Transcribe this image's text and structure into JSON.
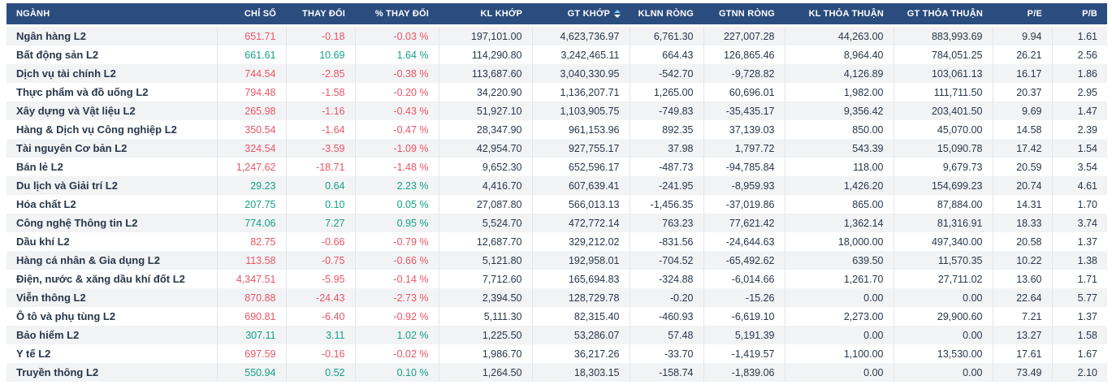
{
  "colors": {
    "header_bg": "#2b4c7e",
    "header_fg": "#ffffff",
    "row_alt_bg": "#f2f3f5",
    "text_dark": "#28374a",
    "up": "#12a286",
    "down": "#ea5565",
    "sort_muted": "#7ec8f3",
    "sort_active": "#ffffff"
  },
  "table": {
    "columns": [
      {
        "label": "NGÀNH"
      },
      {
        "label": "CHỈ SỐ"
      },
      {
        "label": "THAY ĐỔI"
      },
      {
        "label": "% THAY ĐỔI"
      },
      {
        "label": "KL KHỚP"
      },
      {
        "label": "GT KHỚP",
        "sort_icon": "sort-icon",
        "sort_direction": "desc"
      },
      {
        "label": "KLNN RÒNG"
      },
      {
        "label": "GTNN RÒNG"
      },
      {
        "label": "KL THỎA THUẬN"
      },
      {
        "label": "GT THỎA THUẬN"
      },
      {
        "label": "P/E"
      },
      {
        "label": "P/B"
      }
    ],
    "rows": [
      {
        "nganh": "Ngân hàng L2",
        "trend": "down",
        "chi_so": "651.71",
        "thay_doi": "-0.18",
        "pct_thay_doi": "-0.03 %",
        "kl_khop": "197,101.00",
        "gt_khop": "4,623,736.97",
        "klnn_rong": "6,761.30",
        "gtnn_rong": "227,007.28",
        "kl_thoa_thuan": "44,263.00",
        "gt_thoa_thuan": "883,993.69",
        "pe": "9.94",
        "pb": "1.61"
      },
      {
        "nganh": "Bất động sản L2",
        "trend": "up",
        "chi_so": "661.61",
        "thay_doi": "10.69",
        "pct_thay_doi": "1.64 %",
        "kl_khop": "114,290.80",
        "gt_khop": "3,242,465.11",
        "klnn_rong": "664.43",
        "gtnn_rong": "126,865.46",
        "kl_thoa_thuan": "8,964.40",
        "gt_thoa_thuan": "784,051.25",
        "pe": "26.21",
        "pb": "2.56"
      },
      {
        "nganh": "Dịch vụ tài chính L2",
        "trend": "down",
        "chi_so": "744.54",
        "thay_doi": "-2.85",
        "pct_thay_doi": "-0.38 %",
        "kl_khop": "113,687.60",
        "gt_khop": "3,040,330.95",
        "klnn_rong": "-542.70",
        "gtnn_rong": "-9,728.82",
        "kl_thoa_thuan": "4,126.89",
        "gt_thoa_thuan": "103,061.13",
        "pe": "16.17",
        "pb": "1.86"
      },
      {
        "nganh": "Thực phẩm và đồ uống L2",
        "trend": "down",
        "chi_so": "794.48",
        "thay_doi": "-1.58",
        "pct_thay_doi": "-0.20 %",
        "kl_khop": "34,220.90",
        "gt_khop": "1,136,207.71",
        "klnn_rong": "1,265.00",
        "gtnn_rong": "60,696.01",
        "kl_thoa_thuan": "1,982.00",
        "gt_thoa_thuan": "111,711.50",
        "pe": "20.37",
        "pb": "2.95"
      },
      {
        "nganh": "Xây dựng và Vật liệu L2",
        "trend": "down",
        "chi_so": "265.98",
        "thay_doi": "-1.16",
        "pct_thay_doi": "-0.43 %",
        "kl_khop": "51,927.10",
        "gt_khop": "1,103,905.75",
        "klnn_rong": "-749.83",
        "gtnn_rong": "-35,435.17",
        "kl_thoa_thuan": "9,356.42",
        "gt_thoa_thuan": "203,401.50",
        "pe": "9.69",
        "pb": "1.47"
      },
      {
        "nganh": "Hàng & Dịch vụ Công nghiệp L2",
        "trend": "down",
        "chi_so": "350.54",
        "thay_doi": "-1.64",
        "pct_thay_doi": "-0.47 %",
        "kl_khop": "28,347.90",
        "gt_khop": "961,153.96",
        "klnn_rong": "892.35",
        "gtnn_rong": "37,139.03",
        "kl_thoa_thuan": "850.00",
        "gt_thoa_thuan": "45,070.00",
        "pe": "14.58",
        "pb": "2.39"
      },
      {
        "nganh": "Tài nguyên Cơ bản L2",
        "trend": "down",
        "chi_so": "324.54",
        "thay_doi": "-3.59",
        "pct_thay_doi": "-1.09 %",
        "kl_khop": "42,954.70",
        "gt_khop": "927,755.17",
        "klnn_rong": "37.98",
        "gtnn_rong": "1,797.72",
        "kl_thoa_thuan": "543.39",
        "gt_thoa_thuan": "15,090.78",
        "pe": "17.42",
        "pb": "1.54"
      },
      {
        "nganh": "Bán lẻ L2",
        "trend": "down",
        "chi_so": "1,247.62",
        "thay_doi": "-18.71",
        "pct_thay_doi": "-1.48 %",
        "kl_khop": "9,652.30",
        "gt_khop": "652,596.17",
        "klnn_rong": "-487.73",
        "gtnn_rong": "-94,785.84",
        "kl_thoa_thuan": "118.00",
        "gt_thoa_thuan": "9,679.73",
        "pe": "20.59",
        "pb": "3.54"
      },
      {
        "nganh": "Du lịch và Giải trí L2",
        "trend": "up",
        "chi_so": "29.23",
        "thay_doi": "0.64",
        "pct_thay_doi": "2.23 %",
        "kl_khop": "4,416.70",
        "gt_khop": "607,639.41",
        "klnn_rong": "-241.95",
        "gtnn_rong": "-8,959.93",
        "kl_thoa_thuan": "1,426.20",
        "gt_thoa_thuan": "154,699.23",
        "pe": "20.74",
        "pb": "4.61"
      },
      {
        "nganh": "Hóa chất L2",
        "trend": "up",
        "chi_so": "207.75",
        "thay_doi": "0.10",
        "pct_thay_doi": "0.05 %",
        "kl_khop": "27,087.80",
        "gt_khop": "566,013.13",
        "klnn_rong": "-1,456.35",
        "gtnn_rong": "-37,019.86",
        "kl_thoa_thuan": "865.00",
        "gt_thoa_thuan": "87,884.00",
        "pe": "14.31",
        "pb": "1.70"
      },
      {
        "nganh": "Công nghệ Thông tin L2",
        "trend": "up",
        "chi_so": "774.06",
        "thay_doi": "7.27",
        "pct_thay_doi": "0.95 %",
        "kl_khop": "5,524.70",
        "gt_khop": "472,772.14",
        "klnn_rong": "763.23",
        "gtnn_rong": "77,621.42",
        "kl_thoa_thuan": "1,362.14",
        "gt_thoa_thuan": "81,316.91",
        "pe": "18.33",
        "pb": "3.74"
      },
      {
        "nganh": "Dầu khí L2",
        "trend": "down",
        "chi_so": "82.75",
        "thay_doi": "-0.66",
        "pct_thay_doi": "-0.79 %",
        "kl_khop": "12,687.70",
        "gt_khop": "329,212.02",
        "klnn_rong": "-831.56",
        "gtnn_rong": "-24,644.63",
        "kl_thoa_thuan": "18,000.00",
        "gt_thoa_thuan": "497,340.00",
        "pe": "20.58",
        "pb": "1.37"
      },
      {
        "nganh": "Hàng cá nhân & Gia dụng L2",
        "trend": "down",
        "chi_so": "113.58",
        "thay_doi": "-0.75",
        "pct_thay_doi": "-0.66 %",
        "kl_khop": "5,121.80",
        "gt_khop": "192,958.01",
        "klnn_rong": "-704.52",
        "gtnn_rong": "-65,492.62",
        "kl_thoa_thuan": "639.50",
        "gt_thoa_thuan": "11,570.35",
        "pe": "10.22",
        "pb": "1.38"
      },
      {
        "nganh": "Điện, nước & xăng dầu khí đốt L2",
        "trend": "down",
        "chi_so": "4,347.51",
        "thay_doi": "-5.95",
        "pct_thay_doi": "-0.14 %",
        "kl_khop": "7,712.60",
        "gt_khop": "165,694.83",
        "klnn_rong": "-324.88",
        "gtnn_rong": "-6,014.66",
        "kl_thoa_thuan": "1,261.70",
        "gt_thoa_thuan": "27,711.02",
        "pe": "13.60",
        "pb": "1.71"
      },
      {
        "nganh": "Viễn thông L2",
        "trend": "down",
        "chi_so": "870.88",
        "thay_doi": "-24.43",
        "pct_thay_doi": "-2.73 %",
        "kl_khop": "2,394.50",
        "gt_khop": "128,729.78",
        "klnn_rong": "-0.20",
        "gtnn_rong": "-15.26",
        "kl_thoa_thuan": "0.00",
        "gt_thoa_thuan": "0.00",
        "pe": "22.64",
        "pb": "5.77"
      },
      {
        "nganh": "Ô tô và phụ tùng L2",
        "trend": "down",
        "chi_so": "690.81",
        "thay_doi": "-6.40",
        "pct_thay_doi": "-0.92 %",
        "kl_khop": "5,111.30",
        "gt_khop": "82,315.40",
        "klnn_rong": "-460.93",
        "gtnn_rong": "-6,619.10",
        "kl_thoa_thuan": "2,273.00",
        "gt_thoa_thuan": "29,900.60",
        "pe": "7.21",
        "pb": "1.37"
      },
      {
        "nganh": "Bảo hiểm L2",
        "trend": "up",
        "chi_so": "307.11",
        "thay_doi": "3.11",
        "pct_thay_doi": "1.02 %",
        "kl_khop": "1,225.50",
        "gt_khop": "53,286.07",
        "klnn_rong": "57.48",
        "gtnn_rong": "5,191.39",
        "kl_thoa_thuan": "0.00",
        "gt_thoa_thuan": "0.00",
        "pe": "13.27",
        "pb": "1.58"
      },
      {
        "nganh": "Y tế L2",
        "trend": "down",
        "chi_so": "697.59",
        "thay_doi": "-0.16",
        "pct_thay_doi": "-0.02 %",
        "kl_khop": "1,986.70",
        "gt_khop": "36,217.26",
        "klnn_rong": "-33.70",
        "gtnn_rong": "-1,419.57",
        "kl_thoa_thuan": "1,100.00",
        "gt_thoa_thuan": "13,530.00",
        "pe": "17.61",
        "pb": "1.67"
      },
      {
        "nganh": "Truyền thông L2",
        "trend": "up",
        "chi_so": "550.94",
        "thay_doi": "0.52",
        "pct_thay_doi": "0.10 %",
        "kl_khop": "1,264.50",
        "gt_khop": "18,303.15",
        "klnn_rong": "-158.74",
        "gtnn_rong": "-1,839.06",
        "kl_thoa_thuan": "0.00",
        "gt_thoa_thuan": "0.00",
        "pe": "73.49",
        "pb": "2.10"
      }
    ]
  }
}
